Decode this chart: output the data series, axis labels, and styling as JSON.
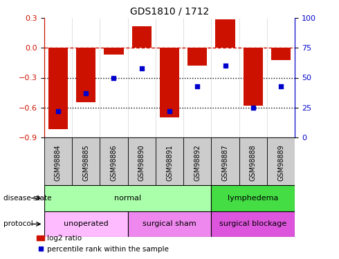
{
  "title": "GDS1810 / 1712",
  "samples": [
    "GSM98884",
    "GSM98885",
    "GSM98886",
    "GSM98890",
    "GSM98891",
    "GSM98892",
    "GSM98887",
    "GSM98888",
    "GSM98889"
  ],
  "log2_ratio": [
    -0.82,
    -0.55,
    -0.07,
    0.22,
    -0.7,
    -0.18,
    0.29,
    -0.58,
    -0.12
  ],
  "percentile_rank": [
    22,
    37,
    50,
    58,
    22,
    43,
    60,
    25,
    43
  ],
  "ylim_left": [
    -0.9,
    0.3
  ],
  "ylim_right": [
    0,
    100
  ],
  "yticks_left": [
    -0.9,
    -0.6,
    -0.3,
    0.0,
    0.3
  ],
  "yticks_right": [
    0,
    25,
    50,
    75,
    100
  ],
  "hlines": [
    -0.3,
    -0.6
  ],
  "disease_state_groups": [
    {
      "label": "normal",
      "start": 0,
      "end": 6,
      "color": "#aaffaa"
    },
    {
      "label": "lymphedema",
      "start": 6,
      "end": 9,
      "color": "#44dd44"
    }
  ],
  "protocol_groups": [
    {
      "label": "unoperated",
      "start": 0,
      "end": 3,
      "color": "#ffbbff"
    },
    {
      "label": "surgical sham",
      "start": 3,
      "end": 6,
      "color": "#ee88ee"
    },
    {
      "label": "surgical blockage",
      "start": 6,
      "end": 9,
      "color": "#dd55dd"
    }
  ],
  "bar_color": "#cc1100",
  "dot_color": "#0000cc",
  "dashed_line_color": "#cc1100",
  "dotted_line_color": "#000000",
  "left_axis_color": "#cc1100",
  "right_axis_color": "#0000cc",
  "legend_bar_label": "log2 ratio",
  "legend_dot_label": "percentile rank within the sample",
  "tick_box_color": "#cccccc"
}
